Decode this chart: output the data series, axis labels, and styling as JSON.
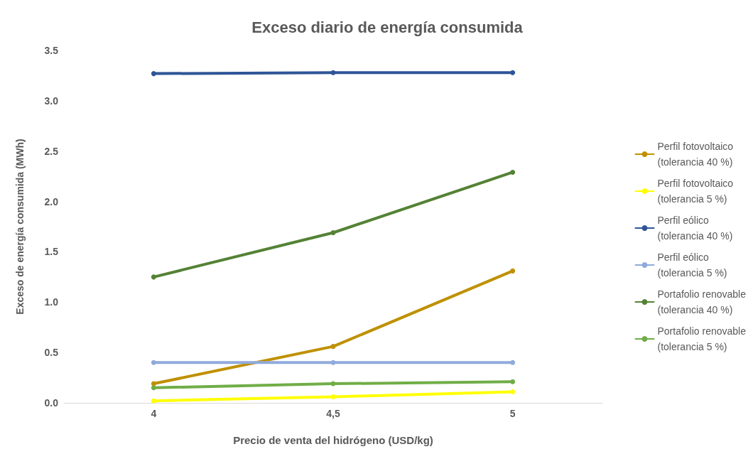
{
  "chart_data": {
    "type": "line",
    "title": "Exceso diario de energía consumida",
    "xlabel": "Precio de venta del hidrógeno (USD/kg)",
    "ylabel": "Exceso de energía consumida (MWh)",
    "categories": [
      "4",
      "4,5",
      "5"
    ],
    "series": [
      {
        "name": "Perfil fotovoltaico (tolerancia 40 %)",
        "color": "#bf9000",
        "values": [
          0.19,
          0.56,
          1.31
        ]
      },
      {
        "name": "Perfil fotovoltaico (tolerancia 5 %)",
        "color": "#ffff00",
        "values": [
          0.02,
          0.06,
          0.11
        ]
      },
      {
        "name": "Perfil eólico (tolerancia 40 %)",
        "color": "#2f5597",
        "values": [
          3.27,
          3.28,
          3.28
        ]
      },
      {
        "name": "Perfil eólico (tolerancia 5 %)",
        "color": "#8faadc",
        "values": [
          0.4,
          0.4,
          0.4
        ]
      },
      {
        "name": "Portafolio renovable (tolerancia 40 %)",
        "color": "#548235",
        "values": [
          1.25,
          1.69,
          2.29
        ]
      },
      {
        "name": "Portafolio renovable (tolerancia 5 %)",
        "color": "#70ad47",
        "values": [
          0.15,
          0.19,
          0.21
        ]
      }
    ],
    "ylim": [
      0,
      3.5
    ],
    "yticks": [
      {
        "value": 0,
        "label": "0.0"
      },
      0.5,
      {
        "value": 1,
        "label": "1.0"
      },
      1.5,
      {
        "value": 2,
        "label": "2.0"
      },
      2.5,
      {
        "value": 3,
        "label": "3.0"
      },
      3.5
    ],
    "grid": false,
    "legend": "right",
    "marker": "circle",
    "line_style": "solid"
  }
}
